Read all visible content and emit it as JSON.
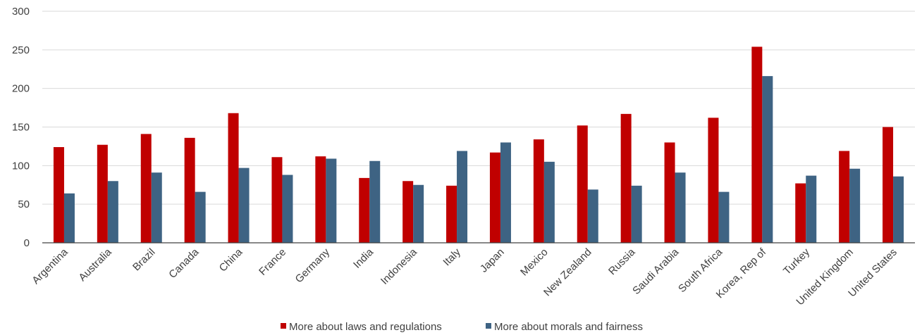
{
  "chart_data": {
    "type": "bar",
    "title": "",
    "xlabel": "",
    "ylabel": "",
    "ylim": [
      0,
      300
    ],
    "yticks": [
      0,
      50,
      100,
      150,
      200,
      250,
      300
    ],
    "grid": true,
    "legend_position": "bottom",
    "categories": [
      "Argentina",
      "Australia",
      "Brazil",
      "Canada",
      "China",
      "France",
      "Germany",
      "India",
      "Indonesia",
      "Italy",
      "Japan",
      "Mexico",
      "New Zealand",
      "Russia",
      "Saudi Arabia",
      "South Africa",
      "Korea, Rep of",
      "Turkey",
      "United Kingdom",
      "United States"
    ],
    "series": [
      {
        "name": "More about laws and regulations",
        "color": "#c00000",
        "values": [
          124,
          127,
          141,
          136,
          168,
          111,
          112,
          84,
          80,
          74,
          117,
          134,
          152,
          167,
          130,
          162,
          254,
          77,
          119,
          150
        ]
      },
      {
        "name": "More about morals and fairness",
        "color": "#3e6383",
        "values": [
          64,
          80,
          91,
          66,
          97,
          88,
          109,
          106,
          75,
          119,
          130,
          105,
          69,
          74,
          91,
          66,
          216,
          87,
          96,
          86
        ]
      }
    ]
  }
}
